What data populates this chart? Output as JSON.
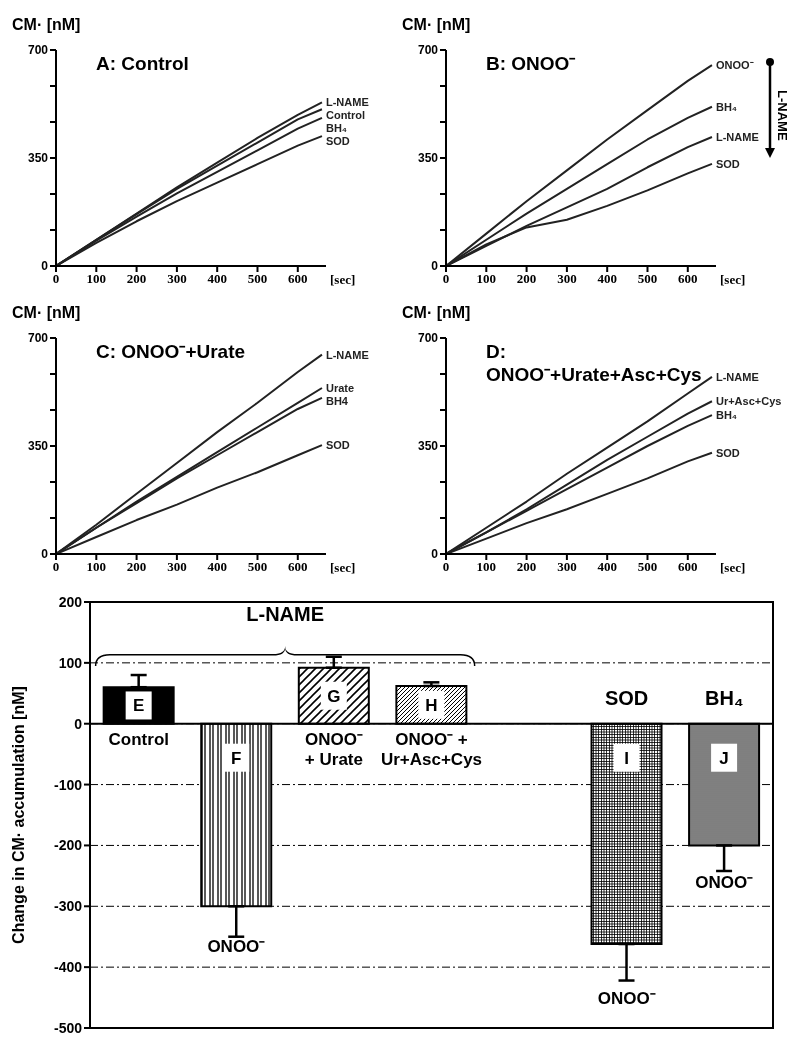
{
  "chart_data": [
    {
      "type": "line",
      "title": "A: Control",
      "xlabel": "[sec]",
      "ylabel": "CM· [nM]",
      "x": [
        0,
        100,
        200,
        300,
        400,
        500,
        600,
        660
      ],
      "xlim": [
        0,
        670
      ],
      "xticks": [
        0,
        100,
        200,
        300,
        400,
        500,
        600
      ],
      "ylim": [
        0,
        700
      ],
      "yticks": [
        0,
        {
          "value": 116.7,
          "label": null
        },
        {
          "value": 233.3,
          "label": null
        },
        350,
        {
          "value": 466.7,
          "label": null
        },
        {
          "value": 583.3,
          "label": null
        },
        700
      ],
      "series": [
        {
          "name": "L-NAME",
          "color": "#222222",
          "values": [
            0,
            85,
            170,
            255,
            335,
            415,
            490,
            530
          ]
        },
        {
          "name": "Control",
          "color": "#222222",
          "values": [
            0,
            85,
            168,
            250,
            325,
            400,
            475,
            508
          ]
        },
        {
          "name": "BH₄",
          "color": "#222222",
          "values": [
            0,
            82,
            160,
            235,
            305,
            375,
            445,
            480
          ]
        },
        {
          "name": "SOD",
          "color": "#222222",
          "values": [
            0,
            75,
            145,
            210,
            270,
            330,
            390,
            421
          ]
        }
      ]
    },
    {
      "type": "line",
      "title": "B: ONOO⁻",
      "xlabel": "[sec]",
      "ylabel": "CM· [nM]",
      "x": [
        0,
        100,
        200,
        300,
        400,
        500,
        600,
        660
      ],
      "xlim": [
        0,
        670
      ],
      "xticks": [
        0,
        100,
        200,
        300,
        400,
        500,
        600
      ],
      "ylim": [
        0,
        700
      ],
      "yticks": [
        0,
        {
          "value": 116.7,
          "label": null
        },
        {
          "value": 233.3,
          "label": null
        },
        350,
        {
          "value": 466.7,
          "label": null
        },
        {
          "value": 583.3,
          "label": null
        },
        700
      ],
      "annotations": [
        "L-NAME"
      ],
      "series": [
        {
          "name": "ONOO⁻",
          "color": "#222222",
          "values": [
            0,
            105,
            210,
            310,
            410,
            505,
            600,
            651
          ]
        },
        {
          "name": "BH₄",
          "color": "#222222",
          "values": [
            0,
            85,
            170,
            250,
            330,
            410,
            480,
            516
          ]
        },
        {
          "name": "L-NAME",
          "color": "#222222",
          "values": [
            0,
            65,
            130,
            190,
            250,
            320,
            385,
            418
          ]
        },
        {
          "name": "SOD",
          "color": "#222222",
          "values": [
            0,
            70,
            125,
            150,
            195,
            245,
            300,
            331
          ]
        }
      ]
    },
    {
      "type": "line",
      "title": "C: ONOO⁻+Urate",
      "xlabel": "[sec]",
      "ylabel": "CM· [nM]",
      "x": [
        0,
        100,
        200,
        300,
        400,
        500,
        600,
        660
      ],
      "xlim": [
        0,
        670
      ],
      "xticks": [
        0,
        100,
        200,
        300,
        400,
        500,
        600
      ],
      "ylim": [
        0,
        700
      ],
      "yticks": [
        0,
        {
          "value": 116.7,
          "label": null
        },
        {
          "value": 233.3,
          "label": null
        },
        350,
        {
          "value": 466.7,
          "label": null
        },
        {
          "value": 583.3,
          "label": null
        },
        700
      ],
      "series": [
        {
          "name": "L-NAME",
          "color": "#222222",
          "values": [
            0,
            95,
            195,
            295,
            395,
            490,
            590,
            646
          ]
        },
        {
          "name": "Urate",
          "color": "#222222",
          "values": [
            0,
            85,
            170,
            250,
            330,
            410,
            490,
            538
          ]
        },
        {
          "name": "BH4",
          "color": "#222222",
          "values": [
            0,
            85,
            165,
            245,
            320,
            395,
            470,
            506
          ]
        },
        {
          "name": "SOD",
          "color": "#222222",
          "values": [
            0,
            55,
            110,
            160,
            215,
            265,
            320,
            353
          ]
        }
      ]
    },
    {
      "type": "line",
      "title": "D: ONOO⁻+Urate+Asc+Cys",
      "xlabel": "[sec]",
      "ylabel": "CM· [nM]",
      "x": [
        0,
        100,
        200,
        300,
        400,
        500,
        600,
        660
      ],
      "xlim": [
        0,
        670
      ],
      "xticks": [
        0,
        100,
        200,
        300,
        400,
        500,
        600
      ],
      "ylim": [
        0,
        700
      ],
      "yticks": [
        0,
        {
          "value": 116.7,
          "label": null
        },
        {
          "value": 233.3,
          "label": null
        },
        350,
        {
          "value": 466.7,
          "label": null
        },
        {
          "value": 583.3,
          "label": null
        },
        700
      ],
      "series": [
        {
          "name": "L-NAME",
          "color": "#222222",
          "values": [
            0,
            85,
            170,
            260,
            345,
            430,
            520,
            574
          ]
        },
        {
          "name": "Ur+Asc+Cys",
          "color": "#222222",
          "values": [
            0,
            70,
            145,
            225,
            305,
            380,
            455,
            495
          ]
        },
        {
          "name": "BH₄",
          "color": "#222222",
          "values": [
            0,
            70,
            140,
            210,
            280,
            350,
            415,
            450
          ]
        },
        {
          "name": "SOD",
          "color": "#222222",
          "values": [
            0,
            50,
            100,
            145,
            195,
            245,
            300,
            328
          ]
        }
      ]
    },
    {
      "type": "bar",
      "ylabel": "Change in CM· accumulation [nM]",
      "categories": [
        "E",
        "F",
        "G",
        "H",
        null,
        "I",
        "J"
      ],
      "values": [
        60,
        -300,
        92,
        62,
        null,
        -362,
        -200
      ],
      "errors": [
        [
          60,
          80
        ],
        [
          -350,
          -300
        ],
        [
          92,
          110
        ],
        [
          62,
          68
        ],
        null,
        [
          -422,
          -362
        ],
        [
          -242,
          -200
        ]
      ],
      "colors": [
        "#000000",
        "#000000",
        "#000000",
        "#000000",
        "#000000",
        "#000000",
        "#000000"
      ],
      "ylim": [
        -500,
        200
      ],
      "yticks": [
        -500,
        -400,
        -300,
        -200,
        -100,
        0,
        100,
        200
      ],
      "grid": "y",
      "annotations": [
        "L-NAME",
        "Control",
        "ONOO⁻",
        "ONOO⁻\n+ Urate",
        "ONOO⁻ +\nUr+Asc+Cys",
        "SOD",
        "BH₄",
        "ONOO⁻",
        "ONOO⁻"
      ]
    }
  ]
}
